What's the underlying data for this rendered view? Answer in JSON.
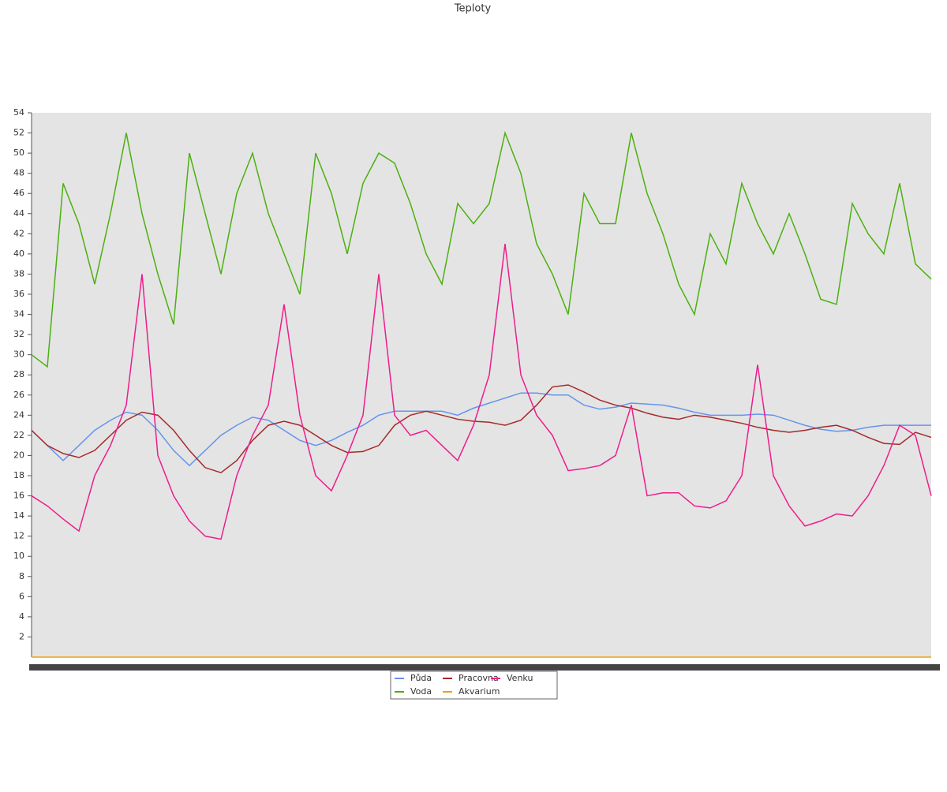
{
  "chart_data": {
    "type": "line",
    "title": "Teploty",
    "ylim": [
      0,
      54
    ],
    "yticks": [
      2,
      4,
      6,
      8,
      10,
      12,
      14,
      16,
      18,
      20,
      22,
      24,
      26,
      28,
      30,
      32,
      34,
      36,
      38,
      40,
      42,
      44,
      46,
      48,
      50,
      52,
      54
    ],
    "grid": false,
    "legend": "bottom",
    "series": [
      {
        "name": "Půda",
        "color": "#6495ed",
        "values": [
          22.5,
          21,
          19.5,
          21,
          22.5,
          23.5,
          24.3,
          24,
          22.5,
          20.5,
          19,
          20.5,
          22,
          23,
          23.8,
          23.5,
          22.5,
          21.5,
          21,
          21.5,
          22.3,
          23,
          24,
          24.4,
          24.4,
          24.4,
          24.4,
          24,
          24.7,
          25.2,
          25.7,
          26.2,
          26.2,
          26,
          26,
          25,
          24.6,
          24.8,
          25.2,
          25.1,
          25,
          24.7,
          24.3,
          24,
          24,
          24,
          24.1,
          24,
          23.5,
          23,
          22.6,
          22.4,
          22.5,
          22.8,
          23,
          23,
          23,
          23
        ]
      },
      {
        "name": "Voda",
        "color": "#4cb010",
        "values": [
          30,
          28.8,
          47,
          43,
          37,
          44,
          52,
          44,
          38,
          33,
          50,
          44,
          38,
          46,
          50,
          44,
          40,
          36,
          50,
          46,
          40,
          47,
          50,
          49,
          45,
          40,
          37,
          45,
          43,
          45,
          52,
          48,
          41,
          38,
          34,
          46,
          43,
          43,
          52,
          46,
          42,
          37,
          34,
          42,
          39,
          47,
          43,
          40,
          44,
          40,
          35.5,
          35,
          45,
          42,
          40,
          47,
          39,
          37.5
        ]
      },
      {
        "name": "Pracovna",
        "color": "#a52a2a",
        "values": [
          22.5,
          21,
          20.2,
          19.8,
          20.5,
          22,
          23.5,
          24.3,
          24,
          22.5,
          20.5,
          18.8,
          18.3,
          19.5,
          21.5,
          23,
          23.4,
          23,
          22,
          21,
          20.3,
          20.4,
          21,
          23,
          24,
          24.4,
          24,
          23.6,
          23.4,
          23.3,
          23,
          23.5,
          25,
          26.8,
          27,
          26.3,
          25.5,
          25,
          24.7,
          24.2,
          23.8,
          23.6,
          24,
          23.8,
          23.5,
          23.2,
          22.8,
          22.5,
          22.3,
          22.5,
          22.8,
          23,
          22.5,
          21.8,
          21.2,
          21.1,
          22.3,
          21.8
        ]
      },
      {
        "name": "Akvarium",
        "color": "#e8a317",
        "values": [
          0,
          0,
          0,
          0,
          0,
          0,
          0,
          0,
          0,
          0,
          0,
          0,
          0,
          0,
          0,
          0,
          0,
          0,
          0,
          0,
          0,
          0,
          0,
          0,
          0,
          0,
          0,
          0,
          0,
          0,
          0,
          0,
          0,
          0,
          0,
          0,
          0,
          0,
          0,
          0,
          0,
          0,
          0,
          0,
          0,
          0,
          0,
          0,
          0,
          0,
          0,
          0,
          0,
          0,
          0,
          0,
          0,
          0
        ]
      },
      {
        "name": "Venku",
        "color": "#ee1d8c",
        "values": [
          16,
          15,
          13.7,
          12.5,
          18,
          21,
          25,
          38,
          20,
          16,
          13.5,
          12,
          11.7,
          18,
          22,
          25,
          35,
          24,
          18,
          16.5,
          20,
          24,
          38,
          24,
          22,
          22.5,
          21,
          19.5,
          23,
          28,
          41,
          28,
          24,
          22,
          18.5,
          18.7,
          19,
          20,
          25,
          16,
          16.3,
          16.3,
          15,
          14.8,
          15.5,
          18,
          29,
          18,
          15,
          13,
          13.5,
          14.2,
          14,
          16,
          19,
          23,
          22,
          16
        ]
      }
    ]
  }
}
